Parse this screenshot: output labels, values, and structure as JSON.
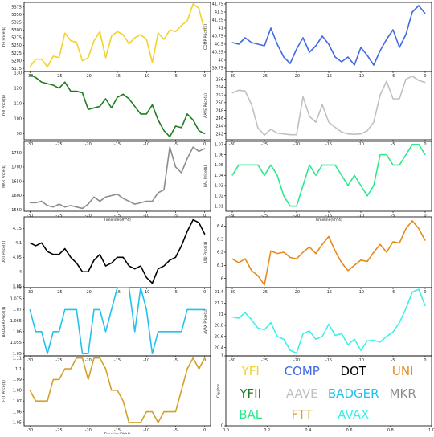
{
  "legend_panel": {
    "ylabel": "Cryptos",
    "xticks": [
      0.0,
      0.2,
      0.4,
      0.6,
      0.8,
      1.0
    ],
    "yticks": [
      0,
      1
    ],
    "entries": [
      {
        "name": "YFI",
        "color": "#f2d22b"
      },
      {
        "name": "COMP",
        "color": "#4169e1"
      },
      {
        "name": "DOT",
        "color": "#000000"
      },
      {
        "name": "UNI",
        "color": "#e8891c"
      },
      {
        "name": "YFII",
        "color": "#1e7d1e"
      },
      {
        "name": "AAVE",
        "color": "#c0c0c0"
      },
      {
        "name": "BADGER",
        "color": "#22c1ee"
      },
      {
        "name": "MKR",
        "color": "#8c8c8c"
      },
      {
        "name": "BAL",
        "color": "#2ee88c"
      },
      {
        "name": "FTT",
        "color": "#d4a02a"
      },
      {
        "name": "AVAX",
        "color": "#40f0e8"
      }
    ]
  },
  "chart_data": [
    {
      "type": "line",
      "name": "YFI",
      "ylabel": "YFI Price($)",
      "xlabel": "",
      "color": "#f2d22b",
      "x": [
        -30,
        -29,
        -28,
        -27,
        -26,
        -25,
        -24,
        -23,
        -22,
        -21,
        -20,
        -19,
        -18,
        -17,
        -16,
        -15,
        -14,
        -13,
        -12,
        -11,
        -10,
        -9,
        -8,
        -7,
        -6,
        -5,
        -4,
        -3,
        -2,
        -1,
        0
      ],
      "values": [
        5180,
        5205,
        5205,
        5180,
        5215,
        5210,
        5290,
        5265,
        5260,
        5200,
        5210,
        5265,
        5295,
        5210,
        5280,
        5295,
        5285,
        5255,
        5275,
        5285,
        5270,
        5195,
        5290,
        5270,
        5300,
        5295,
        5315,
        5330,
        5385,
        5370,
        5295
      ],
      "ylim": [
        5165,
        5390
      ],
      "yticks": [
        5175,
        5200,
        5225,
        5250,
        5275,
        5300,
        5325,
        5350,
        5375
      ],
      "xlim": [
        -31,
        1
      ],
      "xticks": [
        -30,
        -25,
        -20,
        -15,
        -10,
        -5,
        0
      ]
    },
    {
      "type": "line",
      "name": "COMP",
      "ylabel": "COMP Price($)",
      "xlabel": "",
      "color": "#4169e1",
      "x": [
        -30,
        -29,
        -28,
        -27,
        -26,
        -25,
        -24,
        -23,
        -22,
        -21,
        -20,
        -19,
        -18,
        -17,
        -16,
        -15,
        -14,
        -13,
        -12,
        -11,
        -10,
        -9,
        -8,
        -7,
        -6,
        -5,
        -4,
        -3,
        -2,
        -1,
        0
      ],
      "values": [
        40.55,
        40.5,
        40.7,
        40.55,
        40.5,
        40.45,
        41.0,
        40.5,
        40.1,
        39.9,
        40.35,
        40.7,
        40.25,
        40.45,
        40.75,
        40.5,
        40.1,
        39.95,
        40.1,
        39.85,
        40.4,
        40.15,
        39.85,
        40.3,
        40.65,
        40.95,
        40.4,
        40.8,
        41.5,
        41.7,
        41.45
      ],
      "ylim": [
        39.65,
        41.8
      ],
      "yticks": [
        39.75,
        40.0,
        40.25,
        40.5,
        40.75,
        41.0,
        41.25,
        41.5,
        41.75
      ],
      "xlim": [
        -31,
        1
      ],
      "xticks": [
        -30,
        -25,
        -20,
        -15,
        -10,
        -5,
        0
      ]
    },
    {
      "type": "line",
      "name": "YFII",
      "ylabel": "YFII Price($)",
      "xlabel": "",
      "color": "#1e7d1e",
      "x": [
        -30,
        -29,
        -28,
        -27,
        -26,
        -25,
        -24,
        -23,
        -22,
        -21,
        -20,
        -19,
        -18,
        -17,
        -16,
        -15,
        -14,
        -13,
        -12,
        -11,
        -10,
        -9,
        -8,
        -7,
        -6,
        -5,
        -4,
        -3,
        -2,
        -1,
        0
      ],
      "values": [
        129,
        127,
        124,
        123,
        122,
        120,
        124,
        118,
        118,
        117,
        106,
        107,
        108,
        113,
        107,
        114,
        116,
        113,
        108,
        103,
        103,
        109,
        99,
        92,
        88,
        95,
        94,
        103,
        99,
        92,
        90
      ],
      "ylim": [
        86,
        131
      ],
      "yticks": [
        90,
        100,
        110,
        120,
        130
      ],
      "xlim": [
        -31,
        1
      ],
      "xticks": [
        -30,
        -25,
        -20,
        -15,
        -10,
        -5,
        0
      ]
    },
    {
      "type": "line",
      "name": "AAVE",
      "ylabel": "AAVE Price($)",
      "xlabel": "",
      "color": "#c0c0c0",
      "x": [
        -30,
        -29,
        -28,
        -27,
        -26,
        -25,
        -24,
        -23,
        -22,
        -21,
        -20,
        -19,
        -18,
        -17,
        -16,
        -15,
        -14,
        -13,
        -12,
        -11,
        -10,
        -9,
        -8,
        -7,
        -6,
        -5,
        -4,
        -3,
        -2,
        -1,
        0
      ],
      "values": [
        252.5,
        253.2,
        253.0,
        249.5,
        243.5,
        241.7,
        243.2,
        242.2,
        242.0,
        241.8,
        241.8,
        251.5,
        246.5,
        245.0,
        249.5,
        245.0,
        243.7,
        242.5,
        242.0,
        241.9,
        242.0,
        242.8,
        245.0,
        252.0,
        255.5,
        251.0,
        251.0,
        256.0,
        256.8,
        255.7,
        255.2
      ],
      "ylim": [
        240.5,
        258
      ],
      "yticks": [
        242,
        244,
        246,
        248,
        250,
        252,
        254,
        256
      ],
      "xlim": [
        -31,
        1
      ],
      "xticks": [
        -30,
        -25,
        -20,
        -15,
        -10,
        -5,
        0
      ]
    },
    {
      "type": "line",
      "name": "MKR",
      "ylabel": "MKR Price($)",
      "xlabel": "Timeline(9h*4)",
      "color": "#8c8c8c",
      "x": [
        -30,
        -29,
        -28,
        -27,
        -26,
        -25,
        -24,
        -23,
        -22,
        -21,
        -20,
        -19,
        -18,
        -17,
        -16,
        -15,
        -14,
        -13,
        -12,
        -11,
        -10,
        -9,
        -8,
        -7,
        -6,
        -5,
        -4,
        -3,
        -2,
        -1,
        0
      ],
      "values": [
        1575,
        1575,
        1580,
        1565,
        1560,
        1570,
        1560,
        1565,
        1560,
        1555,
        1570,
        1595,
        1580,
        1595,
        1600,
        1605,
        1590,
        1580,
        1570,
        1575,
        1580,
        1580,
        1610,
        1620,
        1770,
        1700,
        1680,
        1730,
        1770,
        1755,
        1765
      ],
      "ylim": [
        1545,
        1790
      ],
      "yticks": [
        1550,
        1600,
        1650,
        1700,
        1750
      ],
      "xlim": [
        -31,
        1
      ],
      "xticks": [
        -30,
        -25,
        -20,
        -15,
        -10,
        -5,
        0
      ]
    },
    {
      "type": "line",
      "name": "BAL",
      "ylabel": "BAL Price($)",
      "xlabel": "Timeline(9h*4)",
      "color": "#2ee88c",
      "x": [
        -30,
        -29,
        -28,
        -27,
        -26,
        -25,
        -24,
        -23,
        -22,
        -21,
        -20,
        -19,
        -18,
        -17,
        -16,
        -15,
        -14,
        -13,
        -12,
        -11,
        -10,
        -9,
        -8,
        -7,
        -6,
        -5,
        -4,
        -3,
        -2,
        -1,
        0
      ],
      "values": [
        1.04,
        1.05,
        1.05,
        1.05,
        1.05,
        1.04,
        1.05,
        1.04,
        1.02,
        1.01,
        1.01,
        1.03,
        1.05,
        1.04,
        1.05,
        1.05,
        1.05,
        1.04,
        1.03,
        1.04,
        1.03,
        1.02,
        1.03,
        1.06,
        1.06,
        1.05,
        1.05,
        1.06,
        1.07,
        1.07,
        1.06
      ],
      "ylim": [
        1.005,
        1.073
      ],
      "yticks": [
        1.01,
        1.02,
        1.03,
        1.04,
        1.05,
        1.06,
        1.07
      ],
      "xlim": [
        -31,
        1
      ],
      "xticks": [
        -30,
        -25,
        -20,
        -15,
        -10,
        -5,
        0
      ]
    },
    {
      "type": "line",
      "name": "DOT",
      "ylabel": "DOT Price($)",
      "xlabel": "",
      "color": "#000000",
      "x": [
        -30,
        -29,
        -28,
        -27,
        -26,
        -25,
        -24,
        -23,
        -22,
        -21,
        -20,
        -19,
        -18,
        -17,
        -16,
        -15,
        -14,
        -13,
        -12,
        -11,
        -10,
        -9,
        -8,
        -7,
        -6,
        -5,
        -4,
        -3,
        -2,
        -1,
        0
      ],
      "values": [
        4.1,
        4.09,
        4.1,
        4.07,
        4.06,
        4.06,
        4.08,
        4.05,
        4.03,
        4.0,
        4.0,
        4.04,
        4.06,
        4.02,
        4.03,
        4.05,
        4.05,
        4.02,
        4.01,
        4.02,
        3.98,
        3.96,
        4.01,
        4.02,
        4.04,
        4.05,
        4.09,
        4.14,
        4.18,
        4.17,
        4.13
      ],
      "ylim": [
        3.945,
        4.19
      ],
      "yticks": [
        3.95,
        4.0,
        4.05,
        4.1,
        4.15
      ],
      "xlim": [
        -31,
        1
      ],
      "xticks": [
        -30,
        -25,
        -20,
        -15,
        -10,
        -5,
        0
      ]
    },
    {
      "type": "line",
      "name": "UNI",
      "ylabel": "UNI Price($)",
      "xlabel": "",
      "color": "#e8891c",
      "x": [
        -30,
        -29,
        -28,
        -27,
        -26,
        -25,
        -24,
        -23,
        -22,
        -21,
        -20,
        -19,
        -18,
        -17,
        -16,
        -15,
        -14,
        -13,
        -12,
        -11,
        -10,
        -9,
        -8,
        -7,
        -6,
        -5,
        -4,
        -3,
        -2,
        -1,
        0
      ],
      "values": [
        6.15,
        6.12,
        6.15,
        6.06,
        6.02,
        5.95,
        6.21,
        6.19,
        6.2,
        6.16,
        6.15,
        6.2,
        6.24,
        6.19,
        6.26,
        6.32,
        6.21,
        6.12,
        6.06,
        6.1,
        6.14,
        6.13,
        6.2,
        6.26,
        6.2,
        6.28,
        6.27,
        6.38,
        6.44,
        6.38,
        6.29
      ],
      "ylim": [
        5.93,
        6.47
      ],
      "yticks": [
        6.0,
        6.1,
        6.2,
        6.3,
        6.4
      ],
      "xlim": [
        -31,
        1
      ],
      "xticks": [
        -30,
        -25,
        -20,
        -15,
        -10,
        -5,
        0
      ]
    },
    {
      "type": "line",
      "name": "BADGER",
      "ylabel": "BADGER Price($)",
      "xlabel": "",
      "color": "#22c1ee",
      "x": [
        -30,
        -29,
        -28,
        -27,
        -26,
        -25,
        -24,
        -23,
        -22,
        -21,
        -20,
        -19,
        -18,
        -17,
        -16,
        -15,
        -14,
        -13,
        -12,
        -11,
        -10,
        -9,
        -8,
        -7,
        -6,
        -5,
        -4,
        -3,
        -2,
        -1,
        0
      ],
      "values": [
        1.07,
        1.06,
        1.06,
        1.05,
        1.06,
        1.06,
        1.07,
        1.07,
        1.07,
        1.05,
        1.05,
        1.07,
        1.07,
        1.06,
        1.07,
        1.08,
        1.08,
        1.08,
        1.06,
        1.08,
        1.07,
        1.05,
        1.06,
        1.06,
        1.06,
        1.06,
        1.06,
        1.07,
        1.07,
        1.07,
        1.07
      ],
      "ylim": [
        1.049,
        1.08
      ],
      "yticks": [
        1.05,
        1.055,
        1.06,
        1.065,
        1.07,
        1.075,
        1.08
      ],
      "xlim": [
        -31,
        1
      ],
      "xticks": [
        -30,
        -25,
        -20,
        -15,
        -10,
        -5,
        0
      ]
    },
    {
      "type": "line",
      "name": "AVAX",
      "ylabel": "AVAX Price($)",
      "xlabel": "",
      "color": "#40f0e8",
      "x": [
        -30,
        -29,
        -28,
        -27,
        -26,
        -25,
        -24,
        -23,
        -22,
        -21,
        -20,
        -19,
        -18,
        -17,
        -16,
        -15,
        -14,
        -13,
        -12,
        -11,
        -10,
        -9,
        -8,
        -7,
        -6,
        -5,
        -4,
        -3,
        -2,
        -1,
        0
      ],
      "values": [
        20.95,
        20.93,
        21.03,
        20.9,
        20.75,
        20.72,
        20.85,
        20.6,
        20.55,
        20.35,
        20.3,
        20.65,
        20.7,
        20.55,
        20.6,
        20.82,
        20.62,
        20.65,
        20.45,
        20.55,
        20.35,
        20.52,
        20.53,
        20.5,
        20.6,
        20.68,
        20.85,
        21.1,
        21.4,
        21.45,
        21.15
      ],
      "ylim": [
        20.25,
        21.48
      ],
      "yticks": [
        20.4,
        20.6,
        20.8,
        21.0,
        21.2,
        21.4
      ],
      "xlim": [
        -31,
        1
      ],
      "xticks": [
        -30,
        -25,
        -20,
        -15,
        -10,
        -5,
        0
      ]
    },
    {
      "type": "line",
      "name": "FTT",
      "ylabel": "FTT Price($)",
      "xlabel": "Timeline(9h*4)",
      "color": "#d4a02a",
      "x": [
        -30,
        -29,
        -28,
        -27,
        -26,
        -25,
        -24,
        -23,
        -22,
        -21,
        -20,
        -19,
        -18,
        -17,
        -16,
        -15,
        -14,
        -13,
        -12,
        -11,
        -10,
        -9,
        -8,
        -7,
        -6,
        -5,
        -4,
        -3,
        -2,
        -1,
        0
      ],
      "values": [
        1.08,
        1.07,
        1.07,
        1.07,
        1.09,
        1.09,
        1.1,
        1.1,
        1.11,
        1.11,
        1.09,
        1.11,
        1.11,
        1.1,
        1.08,
        1.08,
        1.07,
        1.05,
        1.05,
        1.05,
        1.06,
        1.06,
        1.05,
        1.06,
        1.06,
        1.06,
        1.08,
        1.1,
        1.11,
        1.1,
        1.11
      ],
      "ylim": [
        1.047,
        1.112
      ],
      "yticks": [
        1.05,
        1.06,
        1.07,
        1.08,
        1.09,
        1.1,
        1.11
      ],
      "xlim": [
        -31,
        1
      ],
      "xticks": [
        -30,
        -25,
        -20,
        -15,
        -10,
        -5,
        0
      ]
    }
  ]
}
